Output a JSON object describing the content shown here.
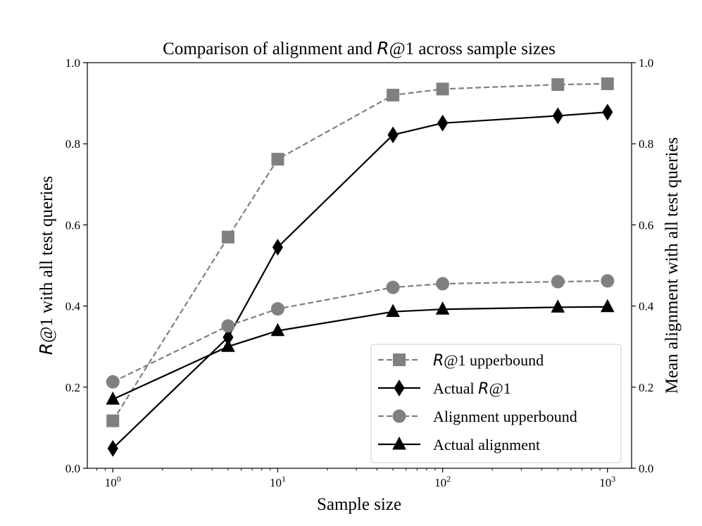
{
  "chart_data": {
    "type": "line",
    "title_pre": "Comparison of alignment and ",
    "title_metric": "R",
    "title_post": "@1 across sample sizes",
    "xlabel": "Sample size",
    "ylabel_metric": "R",
    "ylabel_rest": "@1 with all test queries",
    "y2label": "Mean alignment with all test queries",
    "xscale": "log",
    "xlim": [
      0.7,
      1400
    ],
    "ylim": [
      0,
      1
    ],
    "y2lim": [
      0,
      1
    ],
    "grid": false,
    "legend_position": "bottom-right",
    "x": [
      1,
      5,
      10,
      50,
      100,
      500,
      1000
    ],
    "xticks": [
      {
        "value": 1,
        "base": "10",
        "exp": "0"
      },
      {
        "value": 10,
        "base": "10",
        "exp": "1"
      },
      {
        "value": 100,
        "base": "10",
        "exp": "2"
      },
      {
        "value": 1000,
        "base": "10",
        "exp": "3"
      }
    ],
    "yticks": [
      "0.0",
      "0.2",
      "0.4",
      "0.6",
      "0.8",
      "1.0"
    ],
    "y2ticks": [
      "0.0",
      "0.2",
      "0.4",
      "0.6",
      "0.8",
      "1.0"
    ],
    "series": [
      {
        "key": "r1_upper",
        "name_metric": "R",
        "name_rest": "@1 upperbound",
        "values": [
          0.117,
          0.57,
          0.762,
          0.92,
          0.935,
          0.946,
          0.948
        ],
        "color": "#808080",
        "dash": "dashed",
        "marker": "square"
      },
      {
        "key": "actual_r1",
        "name_pre": "Actual ",
        "name_metric": "R",
        "name_rest": "@1",
        "values": [
          0.049,
          0.323,
          0.545,
          0.822,
          0.851,
          0.869,
          0.878
        ],
        "color": "#000000",
        "dash": "solid",
        "marker": "diamond"
      },
      {
        "key": "align_upper",
        "name_rest": "Alignment upperbound",
        "values": [
          0.213,
          0.351,
          0.393,
          0.446,
          0.455,
          0.46,
          0.462
        ],
        "color": "#808080",
        "dash": "dashed",
        "marker": "circle"
      },
      {
        "key": "actual_align",
        "name_rest": "Actual alignment",
        "values": [
          0.17,
          0.3,
          0.339,
          0.386,
          0.392,
          0.397,
          0.398
        ],
        "color": "#000000",
        "dash": "solid",
        "marker": "triangle"
      }
    ]
  }
}
